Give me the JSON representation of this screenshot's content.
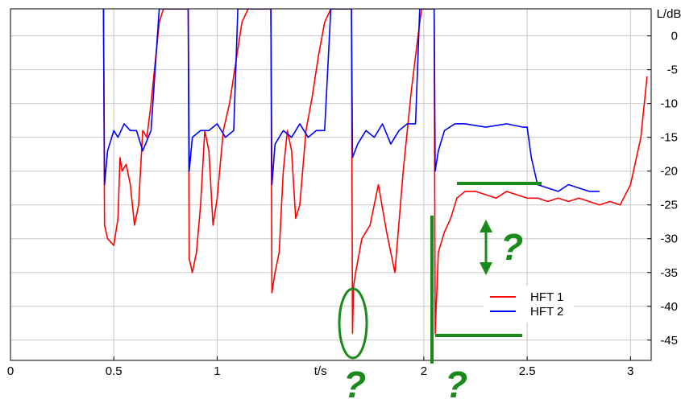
{
  "chart_data": {
    "type": "line",
    "title": "",
    "xlabel": "t/s",
    "ylabel": "L/dB",
    "xlim": [
      0,
      3.1
    ],
    "ylim": [
      -48,
      4
    ],
    "x_ticks": [
      0,
      0.5,
      1,
      2,
      2.5,
      3
    ],
    "x_tick_labels": [
      "0",
      "0.5",
      "1",
      "2",
      "2.5",
      "3"
    ],
    "y_ticks": [
      0,
      -5,
      -10,
      -15,
      -20,
      -25,
      -30,
      -35,
      -40,
      -45
    ],
    "y_tick_labels": [
      "0",
      "-5",
      "-10",
      "-15",
      "-20",
      "-25",
      "-30",
      "-35",
      "-40",
      "-45"
    ],
    "grid": true,
    "legend_position": "bottom-right",
    "series": [
      {
        "name": "HFT 1",
        "color": "#ff0000",
        "x": [
          0.45,
          0.455,
          0.47,
          0.5,
          0.52,
          0.53,
          0.54,
          0.56,
          0.58,
          0.6,
          0.62,
          0.64,
          0.66,
          0.68,
          0.7,
          0.72,
          0.74,
          0.86,
          0.865,
          0.88,
          0.9,
          0.92,
          0.94,
          0.96,
          0.98,
          1.0,
          1.03,
          1.06,
          1.09,
          1.12,
          1.15,
          1.26,
          1.265,
          1.28,
          1.3,
          1.32,
          1.34,
          1.36,
          1.38,
          1.4,
          1.43,
          1.46,
          1.49,
          1.52,
          1.55,
          1.65,
          1.655,
          1.66,
          1.67,
          1.7,
          1.74,
          1.78,
          1.82,
          1.86,
          1.9,
          1.94,
          1.98,
          1.99,
          2.05,
          2.055,
          2.07,
          2.1,
          2.13,
          2.16,
          2.2,
          2.25,
          2.3,
          2.35,
          2.4,
          2.45,
          2.5,
          2.55,
          2.6,
          2.65,
          2.7,
          2.75,
          2.8,
          2.85,
          2.9,
          2.95,
          3.0,
          3.05,
          3.08
        ],
        "values": [
          4,
          -28,
          -30,
          -31,
          -27,
          -18,
          -20,
          -19,
          -22,
          -28,
          -25,
          -14,
          -15,
          -10,
          -4,
          2,
          4,
          4,
          -33,
          -35,
          -32,
          -25,
          -14,
          -17,
          -28,
          -24,
          -14,
          -10,
          -4,
          2,
          4,
          4,
          -38,
          -35,
          -32,
          -20,
          -14,
          -17,
          -27,
          -25,
          -14,
          -9,
          -3,
          2,
          4,
          4,
          -44,
          -37,
          -35,
          -30,
          -28,
          -22,
          -29,
          -35,
          -20,
          -8,
          2,
          4,
          4,
          -44,
          -32,
          -29,
          -27,
          -24,
          -23,
          -23,
          -23.5,
          -24,
          -23,
          -23.5,
          -24,
          -24,
          -24.5,
          -24,
          -24.5,
          -24,
          -24.5,
          -25,
          -24.5,
          -25,
          -22,
          -15,
          -6
        ]
      },
      {
        "name": "HFT 2",
        "color": "#0000ff",
        "x": [
          0.45,
          0.455,
          0.47,
          0.5,
          0.52,
          0.55,
          0.58,
          0.61,
          0.64,
          0.68,
          0.7,
          0.72,
          0.86,
          0.865,
          0.88,
          0.92,
          0.96,
          1.0,
          1.04,
          1.08,
          1.1,
          1.26,
          1.265,
          1.28,
          1.32,
          1.36,
          1.4,
          1.44,
          1.48,
          1.52,
          1.55,
          1.65,
          1.655,
          1.68,
          1.72,
          1.76,
          1.8,
          1.84,
          1.88,
          1.92,
          1.96,
          1.98,
          2.05,
          2.055,
          2.07,
          2.1,
          2.15,
          2.2,
          2.3,
          2.4,
          2.48,
          2.5,
          2.52,
          2.55,
          2.6,
          2.65,
          2.7,
          2.75,
          2.8,
          2.85
        ],
        "values": [
          4,
          -22,
          -17,
          -14,
          -15,
          -13,
          -14,
          -14,
          -17,
          -14,
          -5,
          4,
          4,
          -20,
          -15,
          -14,
          -14,
          -13,
          -15,
          -14,
          4,
          4,
          -22,
          -16,
          -14,
          -15,
          -13,
          -15,
          -14,
          -14,
          4,
          4,
          -18,
          -16,
          -14,
          -15,
          -13,
          -16,
          -14,
          -13,
          -13,
          4,
          4,
          -20,
          -17,
          -14,
          -13,
          -13,
          -13.5,
          -13,
          -13.5,
          -13.5,
          -18,
          -22,
          -22.5,
          -23,
          -22,
          -22.5,
          -23,
          -23
        ]
      }
    ],
    "annotations": [
      "?",
      "?",
      "?"
    ]
  }
}
